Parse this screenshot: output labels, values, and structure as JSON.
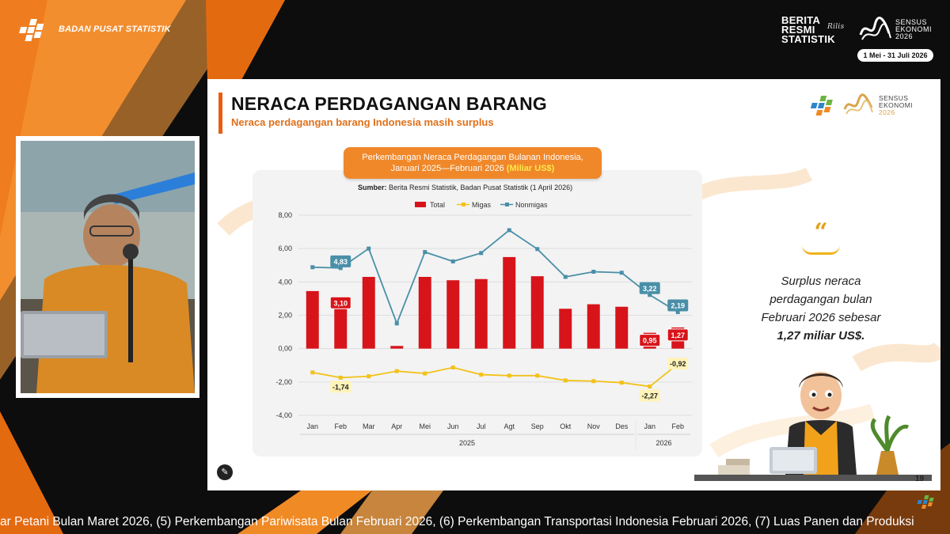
{
  "header": {
    "bps_name": "BADAN PUSAT STATISTIK",
    "brs_line1": "BERITA",
    "brs_line2": "RESMI",
    "brs_line3": "STATISTIK",
    "brs_rilis": "Rilis",
    "se_line1": "SENSUS",
    "se_line2": "EKONOMI",
    "se_line3": "2026",
    "se_date": "1 Mei - 31 Juli 2026"
  },
  "slide": {
    "title": "NERACA PERDAGANGAN BARANG",
    "subtitle": "Neraca perdagangan barang Indonesia masih surplus",
    "logo_se1": "SENSUS",
    "logo_se2": "EKONOMI",
    "logo_se3": "2026",
    "chart_heading_line1": "Perkembangan Neraca Perdagangan Bulanan Indonesia,",
    "chart_heading_line2": "Januari 2025—Februari 2026",
    "chart_heading_unit": "(Miliar US$)",
    "source_label": "Sumber:",
    "source_text": "Berita Resmi Statistik, Badan Pusat Statistik (1 April 2026)",
    "quote_mark": "“",
    "quote_line1": "Surplus neraca",
    "quote_line2": "perdagangan bulan",
    "quote_line3": "Februari 2026 sebesar",
    "quote_emphasis": "1,27 miliar US$.",
    "page_number": "19"
  },
  "ticker": {
    "text": "ar Petani Bulan Maret 2026, (5) Perkembangan Pariwisata Bulan Februari 2026, (6) Perkembangan Transportasi Indonesia Februari 2026, (7) Luas Panen dan Produksi"
  },
  "colors": {
    "orange": "#f0882a",
    "total": "#d7141a",
    "migas": "#f2c21a",
    "nonmigas": "#4a8fa8"
  },
  "chart_data": {
    "type": "bar",
    "categories": [
      "Jan",
      "Feb",
      "Mar",
      "Apr",
      "Mei",
      "Jun",
      "Jul",
      "Agt",
      "Sep",
      "Okt",
      "Nov",
      "Des",
      "Jan",
      "Feb"
    ],
    "year_groups": [
      {
        "label": "2025",
        "from": 0,
        "to": 11
      },
      {
        "label": "2026",
        "from": 12,
        "to": 13
      }
    ],
    "ylim": [
      -4,
      8
    ],
    "yticks": [
      "-4,00",
      "-2,00",
      "0,00",
      "2,00",
      "4,00",
      "6,00",
      "8,00"
    ],
    "ytick_values": [
      -4,
      -2,
      0,
      2,
      4,
      6,
      8
    ],
    "grid": true,
    "legend_position": "top",
    "series": [
      {
        "name": "Total",
        "type": "bar",
        "values": [
          3.45,
          3.1,
          4.3,
          0.16,
          4.3,
          4.1,
          4.17,
          5.49,
          4.34,
          2.39,
          2.66,
          2.51,
          0.95,
          1.27
        ]
      },
      {
        "name": "Migas",
        "type": "line",
        "values": [
          -1.43,
          -1.74,
          -1.66,
          -1.35,
          -1.49,
          -1.13,
          -1.56,
          -1.62,
          -1.62,
          -1.91,
          -1.95,
          -2.04,
          -2.27,
          -0.92
        ]
      },
      {
        "name": "Nonmigas",
        "type": "line",
        "values": [
          4.88,
          4.83,
          6.0,
          1.51,
          5.79,
          5.23,
          5.73,
          7.1,
          5.97,
          4.3,
          4.61,
          4.55,
          3.22,
          2.19
        ]
      }
    ],
    "data_labels": [
      {
        "series": "Nonmigas",
        "index": 1,
        "text": "4,83"
      },
      {
        "series": "Total",
        "index": 1,
        "text": "3,10"
      },
      {
        "series": "Migas",
        "index": 1,
        "text": "-1,74"
      },
      {
        "series": "Nonmigas",
        "index": 12,
        "text": "3,22"
      },
      {
        "series": "Nonmigas",
        "index": 13,
        "text": "2,19"
      },
      {
        "series": "Total",
        "index": 12,
        "text": "0,95"
      },
      {
        "series": "Total",
        "index": 13,
        "text": "1,27"
      },
      {
        "series": "Migas",
        "index": 12,
        "text": "-2,27"
      },
      {
        "series": "Migas",
        "index": 13,
        "text": "-0,92"
      }
    ]
  }
}
